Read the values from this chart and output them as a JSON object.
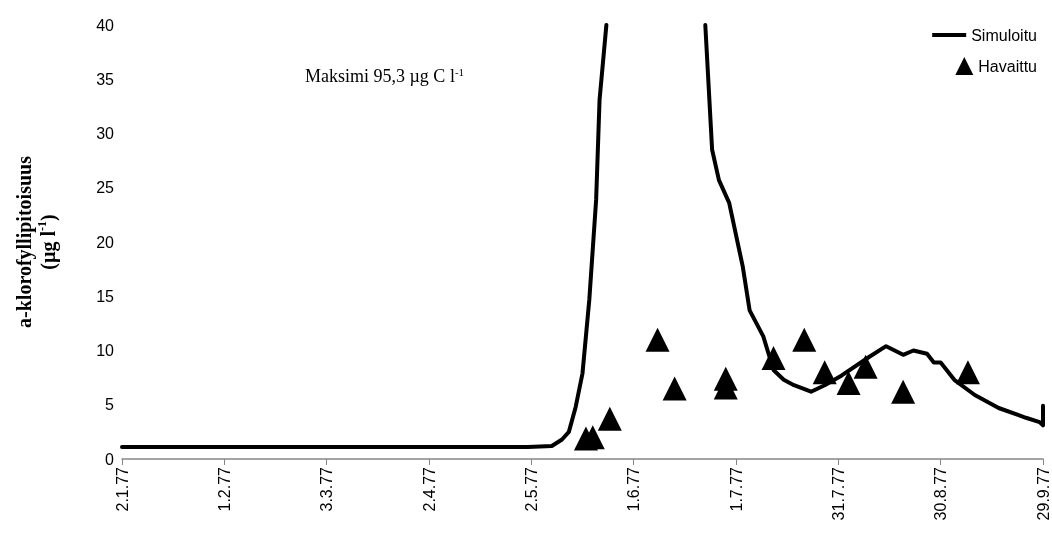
{
  "chart_data": {
    "type": "line",
    "ylabel": "a-klorofyllipitoisuus (µg l$^{-1}$)",
    "annotations": [
      "Maksimi 95,3 µg C l$^{-1}$"
    ],
    "xlim": [
      "1977-01-02",
      "1977-09-29"
    ],
    "xticks": [
      {
        "value": "1977-01-02",
        "label": "2.1.77"
      },
      {
        "value": "1977-02-01",
        "label": "1.2.77"
      },
      {
        "value": "1977-03-03",
        "label": "3.3.77"
      },
      {
        "value": "1977-04-02",
        "label": "2.4.77"
      },
      {
        "value": "1977-05-02",
        "label": "2.5.77"
      },
      {
        "value": "1977-06-01",
        "label": "1.6.77"
      },
      {
        "value": "1977-07-01",
        "label": "1.7.77"
      },
      {
        "value": "1977-07-31",
        "label": "31.7.77"
      },
      {
        "value": "1977-08-30",
        "label": "30.8.77"
      },
      {
        "value": "1977-09-29",
        "label": "29.9.77"
      }
    ],
    "ylim": [
      0,
      40
    ],
    "yticks": [
      0,
      5,
      10,
      15,
      20,
      25,
      30,
      35,
      40
    ],
    "grid": false,
    "legend": "top right",
    "series": [
      {
        "name": "Simuloitu",
        "marker": "none",
        "line_style": "solid",
        "color": "#000000",
        "x": [
          "1977-01-02",
          "1977-03-01",
          "1977-05-01",
          "1977-05-08",
          "1977-05-11",
          "1977-05-13",
          "1977-05-15",
          "1977-05-17",
          "1977-05-19",
          "1977-05-21",
          "1977-05-22",
          "1977-05-24",
          "1977-06-08",
          "1977-06-22",
          "1977-06-24",
          "1977-06-26",
          "1977-06-29",
          "1977-07-03",
          "1977-07-05",
          "1977-07-09",
          "1977-07-12",
          "1977-07-15",
          "1977-07-18",
          "1977-07-23",
          "1977-07-27",
          "1977-08-01",
          "1977-08-09",
          "1977-08-14",
          "1977-08-19",
          "1977-08-22",
          "1977-08-26",
          "1977-08-28",
          "1977-08-30",
          "1977-09-03",
          "1977-09-09",
          "1977-09-16",
          "1977-09-24",
          "1977-09-28",
          "1977-09-29",
          "1977-09-29"
        ],
        "values": [
          1.1,
          1.1,
          1.1,
          1.2,
          1.8,
          2.5,
          4.8,
          7.9,
          14.7,
          23.9,
          33.1,
          40,
          null,
          40,
          28.5,
          25.7,
          23.6,
          17.7,
          13.7,
          11.3,
          8.2,
          7.3,
          6.8,
          6.2,
          6.8,
          7.7,
          9.4,
          10.4,
          9.6,
          10.0,
          9.7,
          8.9,
          8.9,
          7.3,
          5.9,
          4.7,
          3.8,
          3.4,
          3.1,
          4.9
        ]
      },
      {
        "name": "Havaittu",
        "type": "scatter",
        "marker": "triangle",
        "color": "#000000",
        "x": [
          "1977-05-18",
          "1977-05-20",
          "1977-05-25",
          "1977-06-08",
          "1977-06-13",
          "1977-06-28",
          "1977-06-28",
          "1977-07-12",
          "1977-07-21",
          "1977-07-27",
          "1977-08-03",
          "1977-08-08",
          "1977-08-19",
          "1977-09-07"
        ],
        "values": [
          1.9,
          2.0,
          3.7,
          11.0,
          6.5,
          7.4,
          6.6,
          9.3,
          11.0,
          8.0,
          7.0,
          8.5,
          6.2,
          8.0
        ]
      }
    ]
  }
}
